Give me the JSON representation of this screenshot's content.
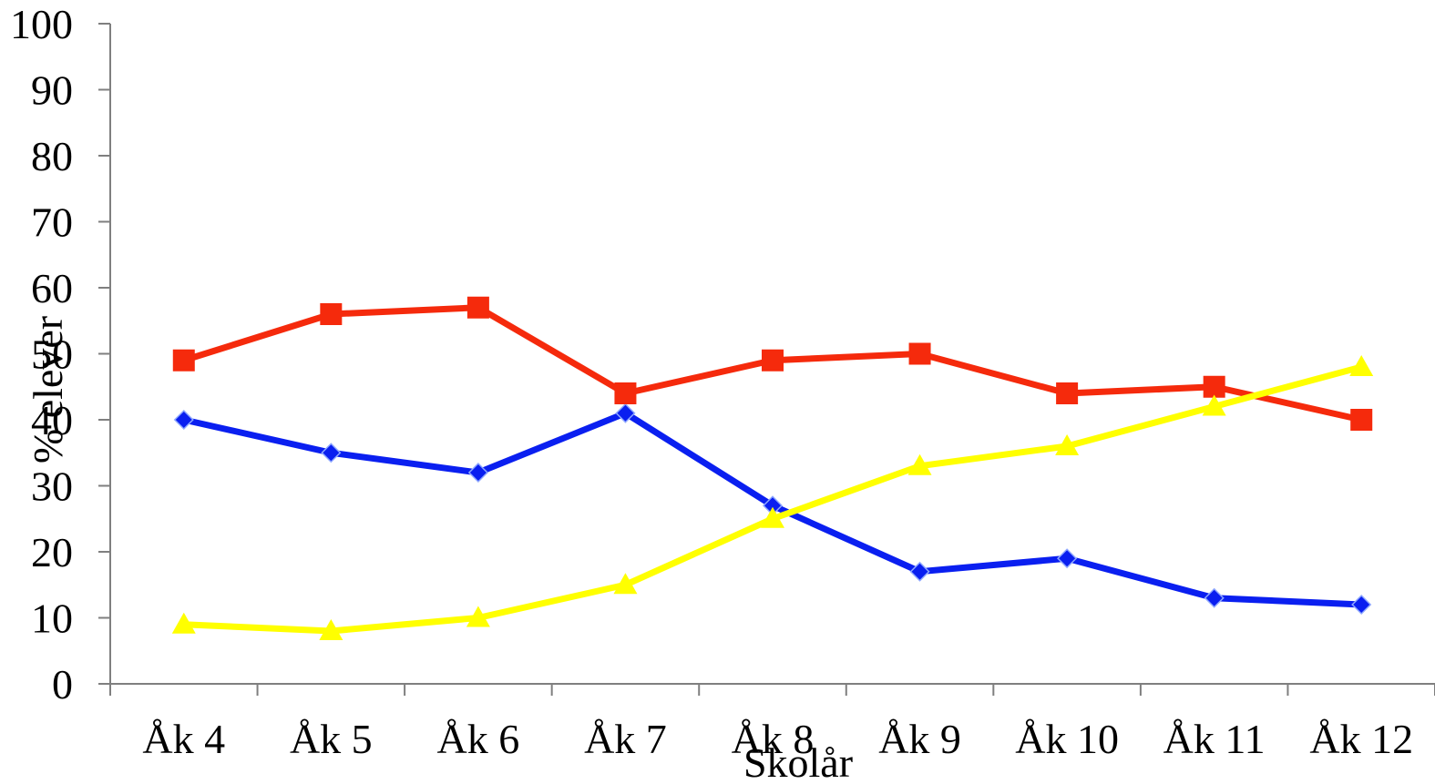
{
  "chart_data": {
    "type": "line",
    "title": "",
    "xlabel": "Skolår",
    "ylabel": "% elever",
    "ylim": [
      0,
      100
    ],
    "yticks": [
      0,
      10,
      20,
      30,
      40,
      50,
      60,
      70,
      80,
      90,
      100
    ],
    "categories": [
      "Åk 4",
      "Åk 5",
      "Åk 6",
      "Åk 7",
      "Åk 8",
      "Åk 9",
      "Åk 10",
      "Åk 11",
      "Åk 12"
    ],
    "grid": false,
    "legend": "none",
    "series": [
      {
        "color": "#0a1ff0",
        "marker": "diamond",
        "values": [
          40,
          35,
          32,
          41,
          27,
          17,
          19,
          13,
          12
        ]
      },
      {
        "color": "#f52a0c",
        "marker": "square",
        "values": [
          49,
          56,
          57,
          44,
          49,
          50,
          44,
          45,
          40
        ]
      },
      {
        "color": "#ffff00",
        "marker": "triangle",
        "values": [
          9,
          8,
          10,
          15,
          25,
          33,
          36,
          42,
          48
        ]
      }
    ]
  }
}
